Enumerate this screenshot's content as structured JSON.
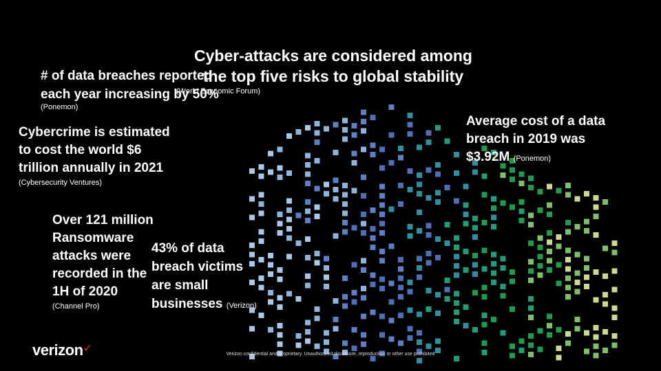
{
  "slide": {
    "title_line1": "Cyber-attacks are considered among",
    "title_line2": "the top five risks to global stability",
    "title_source": "(World Economic Forum)",
    "breaches_line1": "# of data breaches reported",
    "breaches_line2": "each year increasing by 50%",
    "breaches_source": "(Ponemon)",
    "cybercrime_line1": "Cybercrime is estimated",
    "cybercrime_line2": "to cost the world $6",
    "cybercrime_line3": "trillion annually in 2021",
    "cybercrime_source": "(Cybersecurity Ventures)",
    "ransomware_line1": "Over 121 million",
    "ransomware_line2": "Ransomware",
    "ransomware_line3": "attacks were",
    "ransomware_line4": "recorded in the",
    "ransomware_line5": "1H of 2020",
    "ransomware_source": "(Channel Pro)",
    "smb_line1": "43% of data",
    "smb_line2": "breach victims",
    "smb_line3": "are small",
    "smb_line4": "businesses",
    "smb_source": "(Verizon)",
    "avgcost_line1": "Average cost of a data",
    "avgcost_line2": "breach in 2019 was",
    "avgcost_line3": "$3.92M",
    "avgcost_source": "(Ponemon)",
    "logo_text": "verizon",
    "logo_mark": "✓",
    "footer": "Verizon confidential and proprietary. Unauthorized disclosure, reproduction or other use prohibited"
  },
  "colors": {
    "background": "#000000",
    "dot_palette": [
      "#a9c8e8",
      "#8fb4dc",
      "#5f7fc4",
      "#4e6fb7",
      "#2f8fa0",
      "#1f9c7a",
      "#1e9b4e",
      "#7fbf6a",
      "#c9d98f"
    ]
  }
}
